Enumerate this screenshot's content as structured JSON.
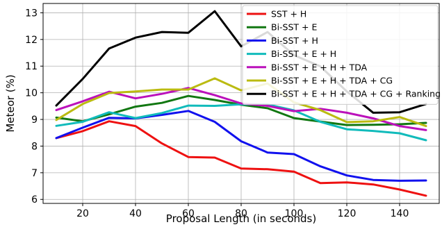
{
  "chart_data": {
    "type": "line",
    "xlabel": "Proposal Length (in seconds)",
    "ylabel": "Meteor (%)",
    "xlim": [
      5,
      155
    ],
    "ylim": [
      5.85,
      13.35
    ],
    "xticks": [
      20,
      40,
      60,
      80,
      100,
      120,
      140
    ],
    "yticks": [
      6,
      7,
      8,
      9,
      10,
      11,
      12,
      13
    ],
    "grid": true,
    "legend_position": "top-right",
    "x": [
      10,
      20,
      30,
      40,
      50,
      60,
      70,
      80,
      90,
      100,
      110,
      120,
      130,
      140,
      150
    ],
    "series": [
      {
        "name": "SST + H",
        "color": "#ee1111",
        "values": [
          8.3,
          8.56,
          8.93,
          8.75,
          8.1,
          7.59,
          7.57,
          7.16,
          7.13,
          7.04,
          6.61,
          6.64,
          6.56,
          6.37,
          6.14
        ]
      },
      {
        "name": "Bi-SST + E",
        "color": "#117711",
        "values": [
          9.07,
          8.93,
          9.19,
          9.48,
          9.62,
          9.88,
          9.73,
          9.55,
          9.42,
          9.05,
          8.92,
          8.79,
          8.8,
          8.82,
          8.87
        ]
      },
      {
        "name": "Bi-SST + H",
        "color": "#1111ee",
        "values": [
          8.3,
          8.69,
          9.06,
          9.04,
          9.17,
          9.32,
          8.91,
          8.18,
          7.76,
          7.7,
          7.24,
          6.9,
          6.73,
          6.7,
          6.71
        ]
      },
      {
        "name": "Bi-SST + E + H",
        "color": "#11bbbb",
        "values": [
          8.76,
          8.91,
          9.27,
          9.05,
          9.24,
          9.52,
          9.51,
          9.57,
          9.56,
          9.34,
          8.91,
          8.63,
          8.57,
          8.48,
          8.22
        ]
      },
      {
        "name": "Bi-SST + E + H + TDA",
        "color": "#bb11bb",
        "values": [
          9.35,
          9.68,
          10.04,
          9.79,
          9.96,
          10.18,
          9.91,
          9.6,
          9.51,
          9.31,
          9.4,
          9.25,
          9.04,
          8.75,
          8.6
        ]
      },
      {
        "name": "Bi-SST + E + H + TDA + CG",
        "color": "#bbbb11",
        "values": [
          8.98,
          9.58,
          9.99,
          10.05,
          10.12,
          10.12,
          10.54,
          10.09,
          10.35,
          9.64,
          9.35,
          8.9,
          8.93,
          9.09,
          8.75
        ]
      },
      {
        "name": "Bi-SST + E + H + TDA + CG + Ranking",
        "color": "#000000",
        "values": [
          9.52,
          10.52,
          11.66,
          12.07,
          12.28,
          12.25,
          13.06,
          11.74,
          12.28,
          11.41,
          10.99,
          10.05,
          9.25,
          9.27,
          9.58
        ]
      }
    ]
  }
}
